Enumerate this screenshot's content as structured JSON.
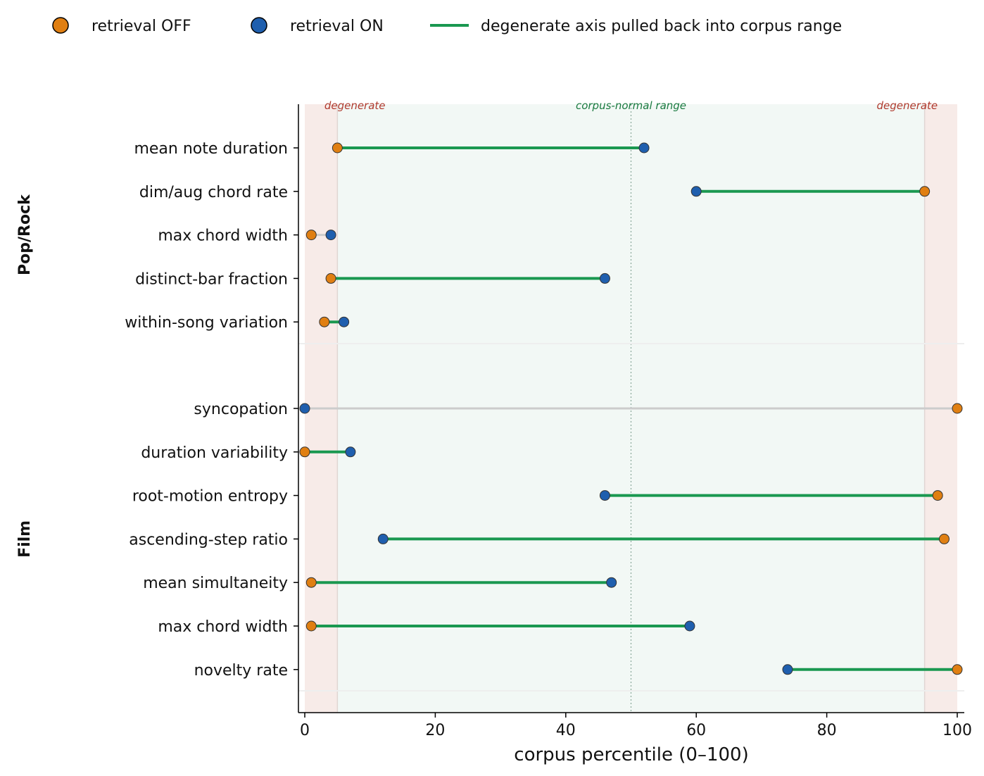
{
  "chart_data": {
    "type": "dumbbell",
    "xlabel": "corpus percentile (0–100)",
    "xlim": [
      0,
      100
    ],
    "xticks": [
      0,
      20,
      40,
      60,
      80,
      100
    ],
    "legend_position": "top",
    "legend": {
      "off": "retrieval OFF",
      "on": "retrieval ON",
      "line": "degenerate axis pulled back into corpus range"
    },
    "zones": {
      "low_label": "degenerate",
      "mid_label": "corpus-normal range",
      "high_label": "degenerate",
      "low_max": 5,
      "high_min": 95,
      "median": 50
    },
    "colors": {
      "off": "#E07F12",
      "on": "#1F5FAE",
      "pulled_line": "#1A9850",
      "unchanged_line": "#cccccc",
      "degenerate_fill": "#f7ebe8",
      "normal_fill": "#f2f8f5",
      "degenerate_text": "#b03a2e",
      "normal_text": "#1a7a40"
    },
    "groups": [
      {
        "name": "Pop/Rock",
        "rows": [
          {
            "label": "mean note duration",
            "off": 5,
            "on": 52,
            "pulled": true
          },
          {
            "label": "dim/aug chord rate",
            "off": 95,
            "on": 60,
            "pulled": true
          },
          {
            "label": "max chord width",
            "off": 1,
            "on": 4,
            "pulled": false
          },
          {
            "label": "distinct-bar fraction",
            "off": 4,
            "on": 46,
            "pulled": true
          },
          {
            "label": "within-song variation",
            "off": 3,
            "on": 6,
            "pulled": true
          }
        ]
      },
      {
        "name": "Film",
        "rows": [
          {
            "label": "syncopation",
            "off": 100,
            "on": 0,
            "pulled": false
          },
          {
            "label": "duration variability",
            "off": 0,
            "on": 7,
            "pulled": true
          },
          {
            "label": "root-motion entropy",
            "off": 97,
            "on": 46,
            "pulled": true
          },
          {
            "label": "ascending-step ratio",
            "off": 98,
            "on": 12,
            "pulled": true
          },
          {
            "label": "mean simultaneity",
            "off": 1,
            "on": 47,
            "pulled": true
          },
          {
            "label": "max chord width",
            "off": 1,
            "on": 59,
            "pulled": true
          },
          {
            "label": "novelty rate",
            "off": 100,
            "on": 74,
            "pulled": true
          }
        ]
      }
    ]
  }
}
